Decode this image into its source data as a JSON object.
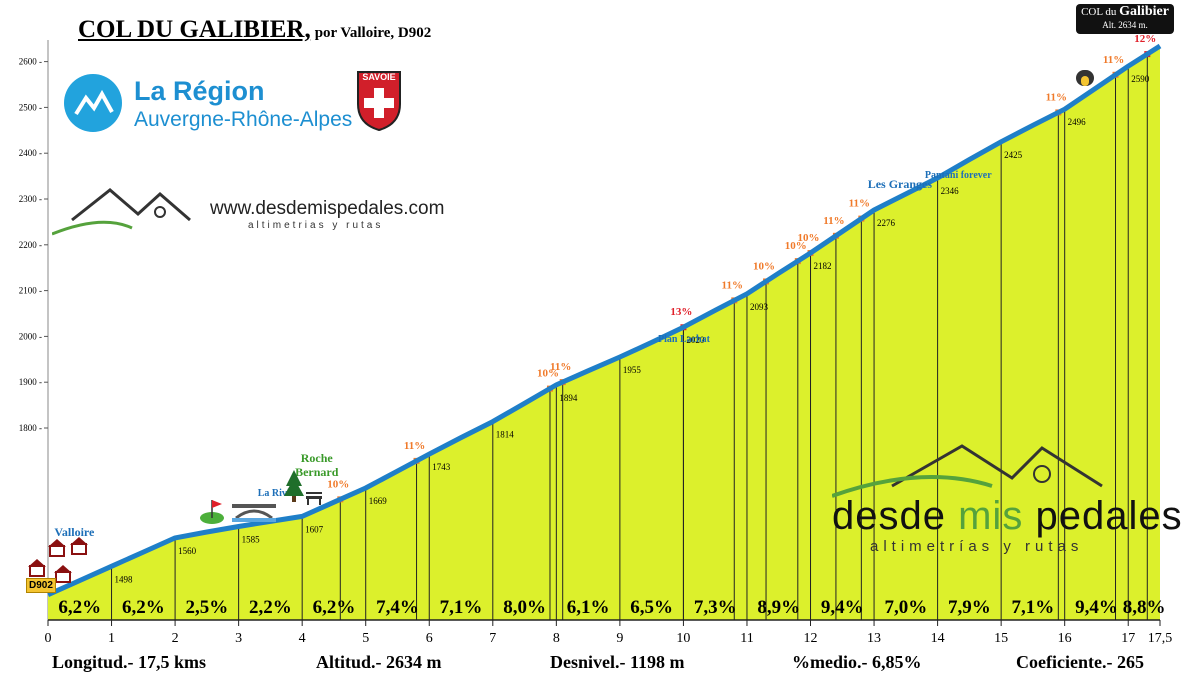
{
  "title": {
    "main": "COL DU GALIBIER,",
    "sub": "por Valloire, D902"
  },
  "summit_box": {
    "prefix": "COL du",
    "name": "Galibier",
    "altitude": "Alt. 2634 m."
  },
  "region_logo": {
    "line1": "La Région",
    "line2": "Auvergne-Rhône-Alpes",
    "icon": "mountain-logo-icon",
    "color": "#22a3dd"
  },
  "savoie": {
    "label": "SAVOIE",
    "icon": "savoie-shield-icon",
    "color": "#d11f2a"
  },
  "brand_small": {
    "url": "www.desdemispedales.com",
    "tagline": "altimetrias y rutas",
    "icon": "mountains-icon"
  },
  "brand_big": {
    "word1": "desde",
    "word2": "mis",
    "word3": "pedales",
    "tagline": "altimetrías y rutas",
    "icon": "mountains-icon"
  },
  "road_badge": "D902",
  "stats": {
    "length": "Longitud.- 17,5 kms",
    "altitude": "Altitud.- 2634 m",
    "elevation_gain": "Desnivel.- 1198 m",
    "avg_gradient": "%medio.- 6,85%",
    "coefficient": "Coeficiente.- 265"
  },
  "chart_data": {
    "type": "area",
    "xlim": [
      0,
      17.5
    ],
    "ylim": [
      1436,
      2640
    ],
    "x_ticks": [
      "0",
      "1",
      "2",
      "3",
      "4",
      "5",
      "6",
      "7",
      "8",
      "9",
      "10",
      "11",
      "12",
      "13",
      "14",
      "15",
      "16",
      "17",
      "17,5"
    ],
    "y_ticks": [
      "1800",
      "1900",
      "2000",
      "2100",
      "2200",
      "2300",
      "2400",
      "2500",
      "2600"
    ],
    "y_tick_values": [
      1800,
      1900,
      2000,
      2100,
      2200,
      2300,
      2400,
      2500,
      2600
    ],
    "profile": {
      "x": [
        0,
        0.5,
        1,
        1.5,
        2,
        2.5,
        3,
        3.5,
        4,
        4.5,
        5,
        5.5,
        6,
        6.5,
        7,
        7.5,
        8,
        8.5,
        9,
        9.5,
        10,
        10.5,
        11,
        11.5,
        12,
        12.5,
        13,
        13.5,
        14,
        14.5,
        15,
        15.5,
        16,
        16.5,
        17,
        17.5
      ],
      "y": [
        1436,
        1467,
        1498,
        1529,
        1560,
        1573,
        1585,
        1596,
        1607,
        1638,
        1669,
        1706,
        1743,
        1779,
        1814,
        1854,
        1894,
        1925,
        1955,
        1987,
        2020,
        2057,
        2093,
        2138,
        2182,
        2229,
        2276,
        2311,
        2346,
        2386,
        2425,
        2461,
        2496,
        2543,
        2590,
        2634
      ]
    },
    "km_altitudes": [
      {
        "x": 1,
        "label": "1498"
      },
      {
        "x": 2,
        "label": "1560"
      },
      {
        "x": 3,
        "label": "1585"
      },
      {
        "x": 4,
        "label": "1607"
      },
      {
        "x": 5,
        "label": "1669"
      },
      {
        "x": 6,
        "label": "1743"
      },
      {
        "x": 7,
        "label": "1814"
      },
      {
        "x": 8,
        "label": "1894"
      },
      {
        "x": 9,
        "label": "1955"
      },
      {
        "x": 10,
        "label": "2020"
      },
      {
        "x": 11,
        "label": "2093"
      },
      {
        "x": 12,
        "label": "2182"
      },
      {
        "x": 13,
        "label": "2276"
      },
      {
        "x": 14,
        "label": "2346"
      },
      {
        "x": 15,
        "label": "2425"
      },
      {
        "x": 16,
        "label": "2496"
      },
      {
        "x": 17,
        "label": "2590"
      }
    ],
    "segment_gradients": [
      "6,2%",
      "6,2%",
      "2,5%",
      "2,2%",
      "6,2%",
      "7,4%",
      "7,1%",
      "8,0%",
      "6,1%",
      "6,5%",
      "7,3%",
      "8,9%",
      "9,4%",
      "7,0%",
      "7,9%",
      "7,1%",
      "9,4%",
      "8,8%"
    ],
    "ramp_labels": [
      {
        "x": 4.6,
        "label": "10%",
        "color": "#f07a2a"
      },
      {
        "x": 5.8,
        "label": "11%",
        "color": "#f07a2a"
      },
      {
        "x": 7.9,
        "label": "10%",
        "color": "#f07a2a"
      },
      {
        "x": 8.1,
        "label": "11%",
        "color": "#f07a2a"
      },
      {
        "x": 10.0,
        "label": "13%",
        "color": "#e0202a"
      },
      {
        "x": 10.8,
        "label": "11%",
        "color": "#f07a2a"
      },
      {
        "x": 11.3,
        "label": "10%",
        "color": "#f07a2a"
      },
      {
        "x": 11.8,
        "label": "10%",
        "color": "#f07a2a"
      },
      {
        "x": 12.0,
        "label": "10%",
        "color": "#f07a2a"
      },
      {
        "x": 12.4,
        "label": "11%",
        "color": "#f07a2a"
      },
      {
        "x": 12.8,
        "label": "11%",
        "color": "#f07a2a"
      },
      {
        "x": 15.9,
        "label": "11%",
        "color": "#f07a2a"
      },
      {
        "x": 16.8,
        "label": "11%",
        "color": "#f07a2a"
      },
      {
        "x": 17.3,
        "label": "12%",
        "color": "#e0202a"
      }
    ],
    "places": [
      {
        "x": 0.1,
        "label": "Valloire",
        "color": "#1d6fb8"
      },
      {
        "x": 3.3,
        "label": "La Rivine",
        "color": "#1d6fb8"
      },
      {
        "x": 3.6,
        "label": "Roche Bernard",
        "color": "#3a9a2a"
      },
      {
        "x": 9.6,
        "label": "Plan Lachat",
        "color": "#1d6fb8"
      },
      {
        "x": 12.9,
        "label": "Les Granges",
        "color": "#1d6fb8"
      },
      {
        "x": 13.8,
        "label": "Pantani forever",
        "color": "#1d6fb8"
      }
    ],
    "grid": false,
    "colors": {
      "fill": "#dcf02c",
      "line": "#1f7fc8",
      "text": "#000000"
    }
  }
}
